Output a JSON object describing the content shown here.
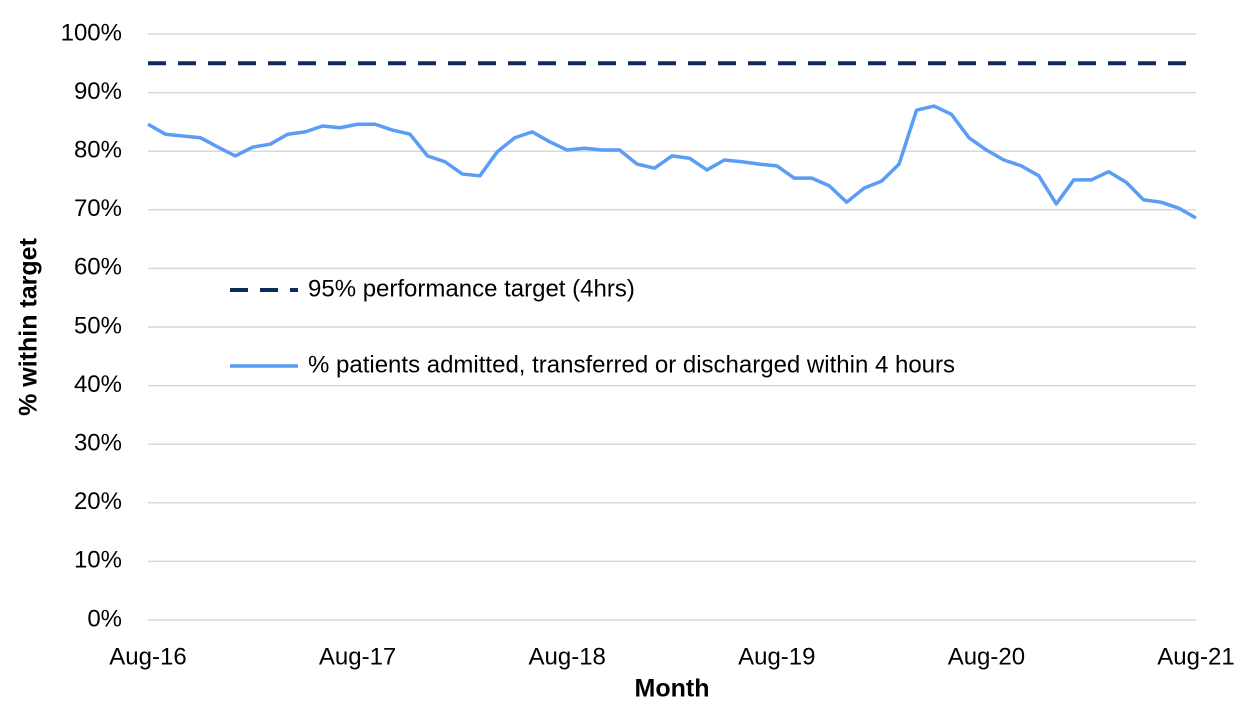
{
  "chart_data": {
    "type": "line",
    "y_label": "% within target",
    "x_label": "Month",
    "categories": [
      "Aug-16",
      null,
      null,
      null,
      null,
      null,
      null,
      null,
      null,
      null,
      null,
      null,
      "Aug-17",
      null,
      null,
      null,
      null,
      null,
      null,
      null,
      null,
      null,
      null,
      null,
      "Aug-18",
      null,
      null,
      null,
      null,
      null,
      null,
      null,
      null,
      null,
      null,
      null,
      "Aug-19",
      null,
      null,
      null,
      null,
      null,
      null,
      null,
      null,
      null,
      null,
      null,
      "Aug-20",
      null,
      null,
      null,
      null,
      null,
      null,
      null,
      null,
      null,
      null,
      null,
      "Aug-21"
    ],
    "series": [
      {
        "name": "95% performance target (4hrs)",
        "color": "#0d2b5a",
        "dashed": true,
        "values": [
          95,
          95,
          95,
          95,
          95,
          95,
          95,
          95,
          95,
          95,
          95,
          95,
          95,
          95,
          95,
          95,
          95,
          95,
          95,
          95,
          95,
          95,
          95,
          95,
          95,
          95,
          95,
          95,
          95,
          95,
          95,
          95,
          95,
          95,
          95,
          95,
          95,
          95,
          95,
          95,
          95,
          95,
          95,
          95,
          95,
          95,
          95,
          95,
          95,
          95,
          95,
          95,
          95,
          95,
          95,
          95,
          95,
          95,
          95,
          95,
          95
        ]
      },
      {
        "name": "% patients admitted, transferred or discharged within 4 hours",
        "color": "#5b9cf5",
        "dashed": false,
        "values": [
          84.6,
          82.9,
          82.6,
          82.3,
          80.7,
          79.2,
          80.7,
          81.2,
          82.9,
          83.3,
          84.3,
          84.0,
          84.6,
          84.6,
          83.6,
          82.9,
          79.2,
          78.2,
          76.1,
          75.8,
          79.9,
          82.3,
          83.3,
          81.6,
          80.2,
          80.5,
          80.2,
          80.2,
          77.8,
          77.1,
          79.2,
          78.8,
          76.8,
          78.5,
          78.2,
          77.8,
          77.5,
          75.4,
          75.4,
          74.1,
          71.3,
          73.7,
          74.9,
          77.8,
          87.0,
          87.7,
          86.3,
          82.3,
          80.2,
          78.5,
          77.5,
          75.8,
          71.0,
          75.1,
          75.1,
          76.5,
          74.7,
          71.7,
          71.3,
          70.3,
          68.6
        ]
      }
    ],
    "ylim": [
      0,
      100
    ],
    "yticks": [
      {
        "value": 0,
        "label": "0%"
      },
      {
        "value": 10,
        "label": "10%"
      },
      {
        "value": 20,
        "label": "20%"
      },
      {
        "value": 30,
        "label": "30%"
      },
      {
        "value": 40,
        "label": "40%"
      },
      {
        "value": 50,
        "label": "50%"
      },
      {
        "value": 60,
        "label": "60%"
      },
      {
        "value": 70,
        "label": "70%"
      },
      {
        "value": 80,
        "label": "80%"
      },
      {
        "value": 90,
        "label": "90%"
      },
      {
        "value": 100,
        "label": "100%"
      }
    ],
    "grid": true,
    "legend": "center-left"
  }
}
